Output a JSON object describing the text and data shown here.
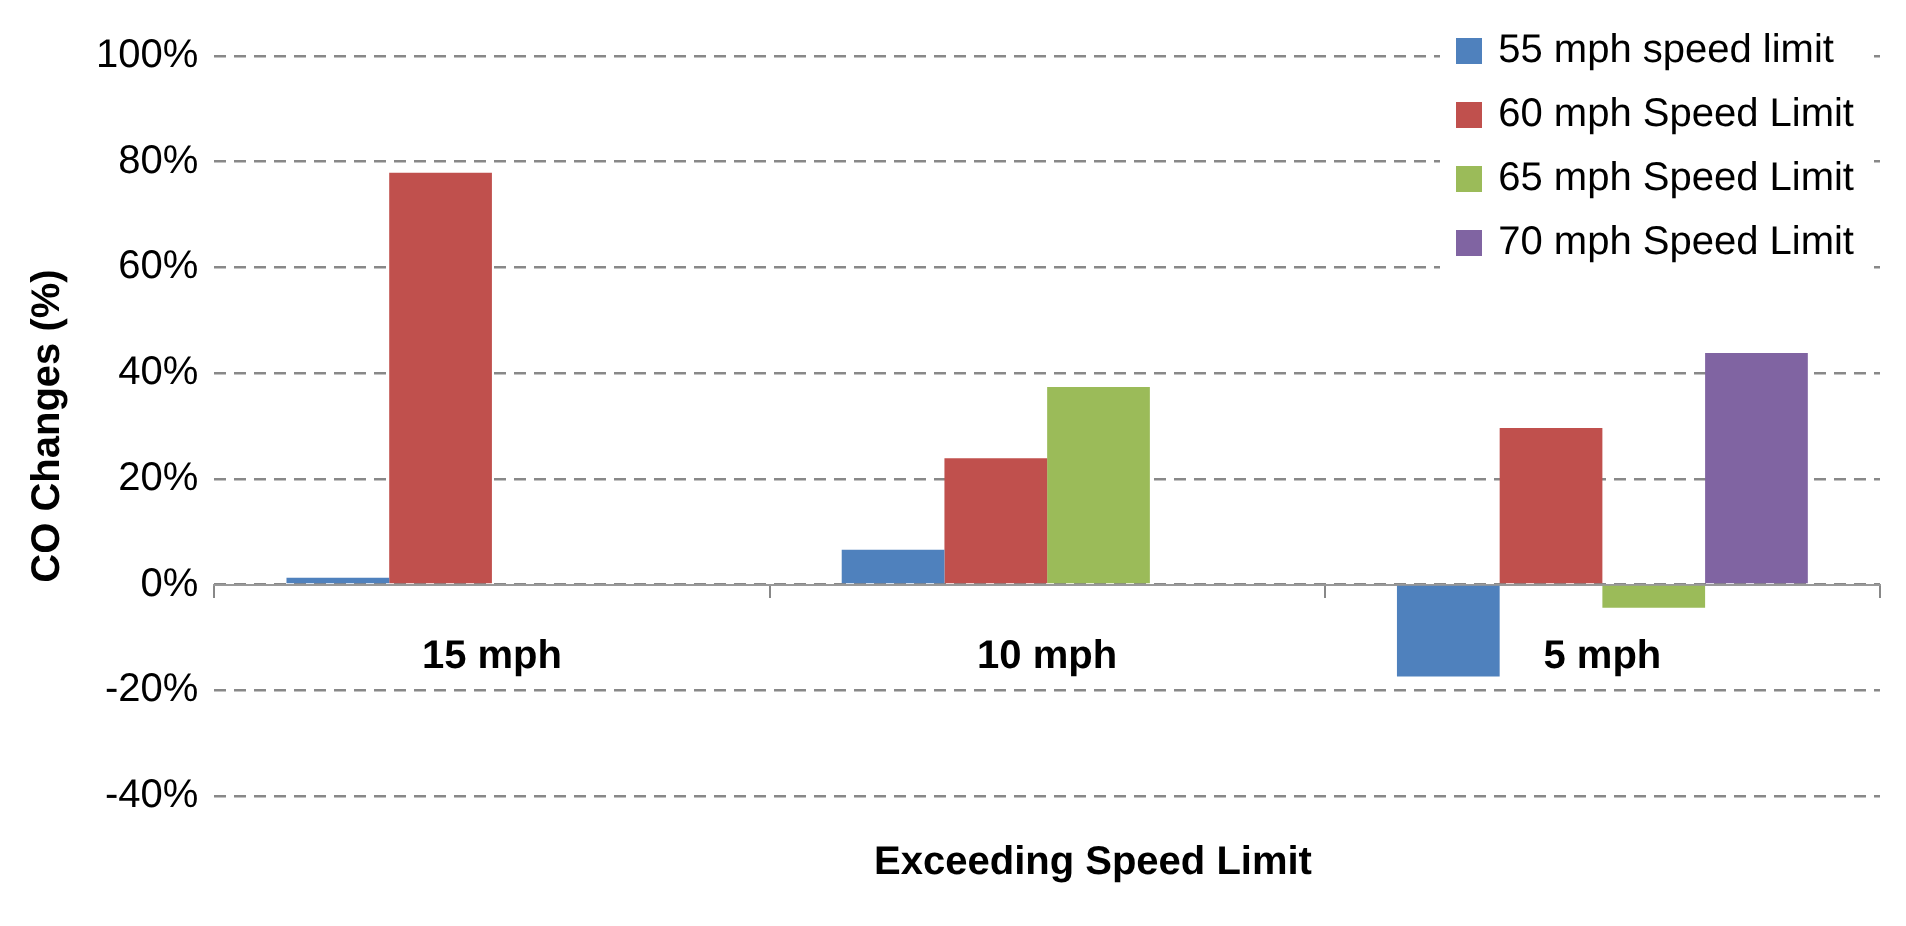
{
  "chart_data": {
    "type": "bar",
    "xlabel": "Exceeding Speed Limit",
    "ylabel": "CO Changes (%)",
    "categories": [
      "15 mph",
      "10 mph",
      "5 mph"
    ],
    "series": [
      {
        "name": "55 mph speed limit",
        "color": "#4f81bd",
        "values": [
          1.3,
          6.6,
          -17.4
        ]
      },
      {
        "name": "60 mph Speed Limit",
        "color": "#c0504d",
        "values": [
          77.9,
          23.9,
          29.6
        ]
      },
      {
        "name": "65 mph Speed Limit",
        "color": "#9bbb59",
        "values": [
          null,
          37.4,
          -4.4
        ]
      },
      {
        "name": "70 mph Speed Limit",
        "color": "#8064a2",
        "values": [
          null,
          null,
          43.8
        ]
      }
    ],
    "ylim": [
      -40,
      100
    ],
    "yticks": [
      {
        "value": -40,
        "label": "-40%"
      },
      {
        "value": -20,
        "label": "-20%"
      },
      {
        "value": 0,
        "label": "0%"
      },
      {
        "value": 20,
        "label": "20%"
      },
      {
        "value": 40,
        "label": "40%"
      },
      {
        "value": 60,
        "label": "60%"
      },
      {
        "value": 80,
        "label": "80%"
      },
      {
        "value": 100,
        "label": "100%"
      }
    ],
    "grid": "y",
    "legend": "top right"
  }
}
